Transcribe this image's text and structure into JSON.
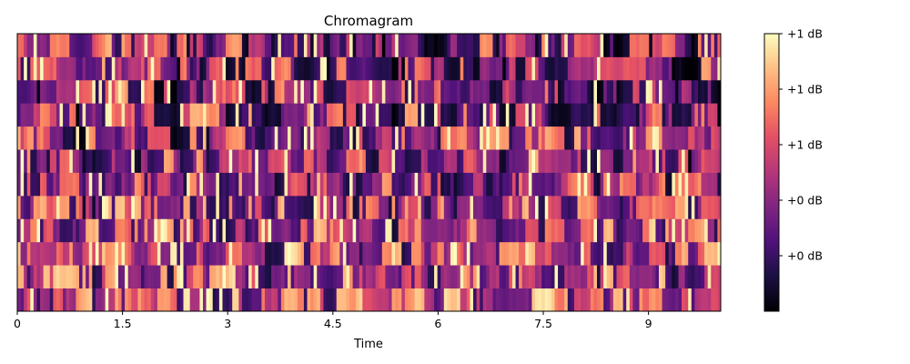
{
  "chart_data": {
    "type": "heatmap",
    "title": "Chromagram",
    "xlabel": "Time",
    "ylabel": "",
    "xlim": [
      0,
      10.03
    ],
    "x_ticks": [
      0,
      1.5,
      3,
      4.5,
      6,
      7.5,
      9
    ],
    "x_tick_labels": [
      "0",
      "1.5",
      "3",
      "4.5",
      "6",
      "7.5",
      "9"
    ],
    "n_chroma_bins": 12,
    "n_frames": 216,
    "colormap": "magma",
    "colorbar": {
      "ticks": [
        0.2,
        0.4,
        0.6,
        0.8,
        1.0
      ],
      "tick_labels": [
        "+0 dB",
        "+0 dB",
        "+1 dB",
        "+1 dB",
        "+1 dB"
      ],
      "range": [
        0,
        1
      ]
    }
  }
}
